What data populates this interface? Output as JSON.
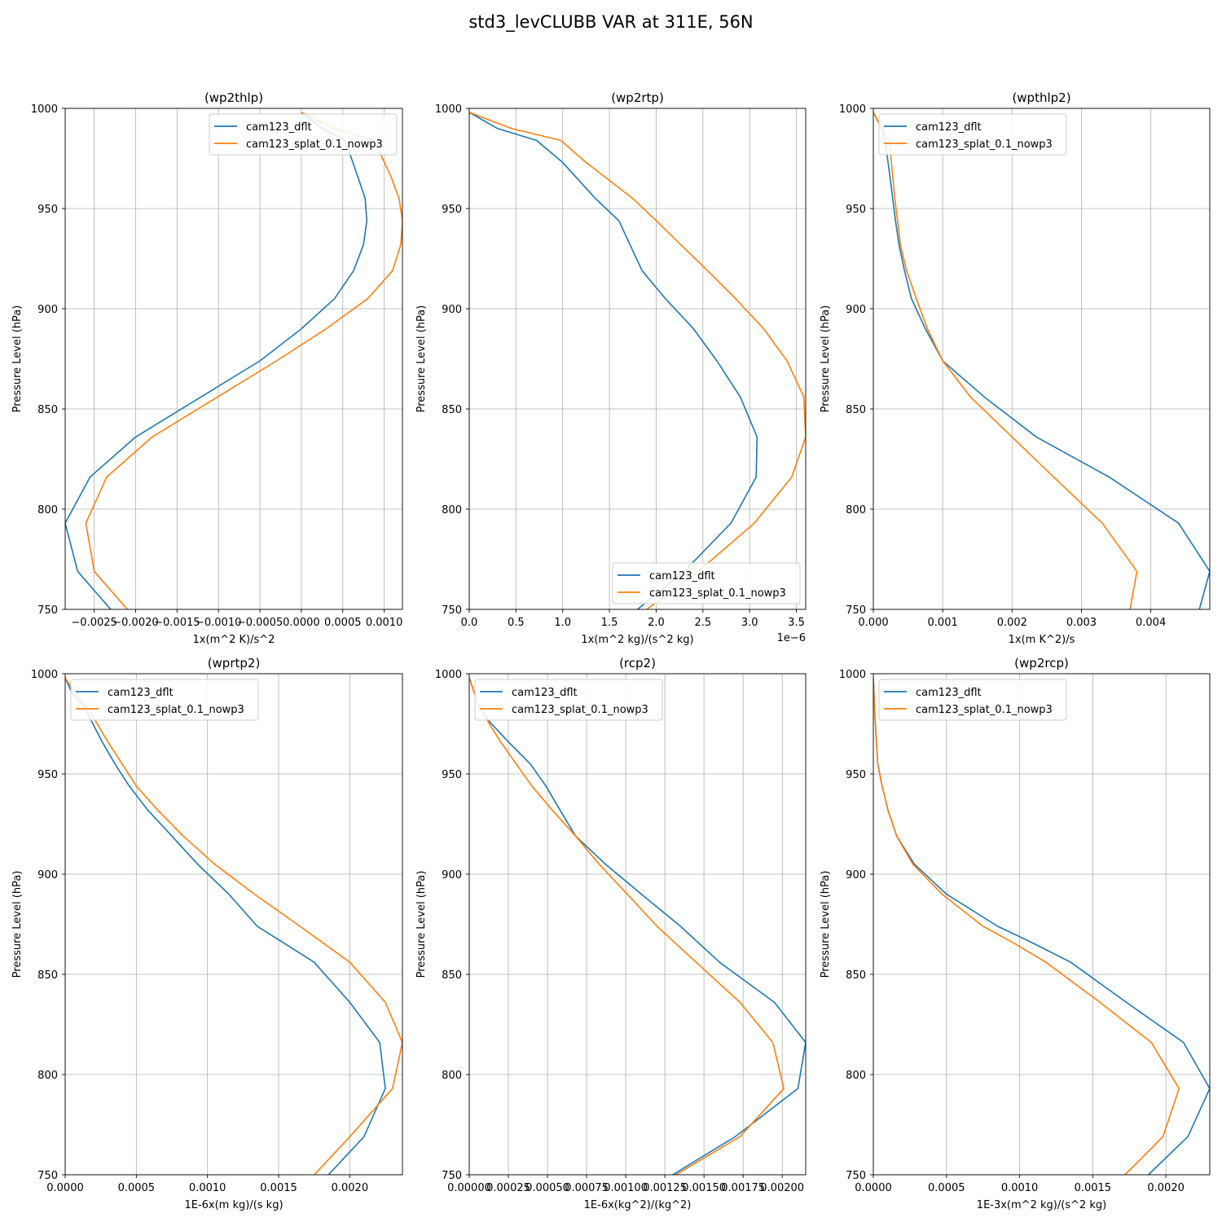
{
  "suptitle": "std3_levCLUBB VAR at 311E, 56N",
  "colors": {
    "series1": "#1f77b4",
    "series2": "#ff7f0e",
    "grid": "#b0b0b0"
  },
  "chart_data": [
    {
      "type": "line",
      "title": "(wp2thlp)",
      "xlabel": "1x(m^2 K)/s^2",
      "ylabel": "Pressure Level (hPa)",
      "xlim": [
        -0.00285,
        0.00122
      ],
      "ylim": [
        1000,
        750
      ],
      "xticks": [
        -0.0025,
        -0.002,
        -0.0015,
        -0.001,
        -0.0005,
        0.0,
        0.0005,
        0.001
      ],
      "xtick_labels": [
        "−0.0025",
        "−0.0020",
        "−0.0015",
        "−0.0010",
        "−0.0005",
        "0.0000",
        "0.0005",
        "0.0010"
      ],
      "yticks": [
        750,
        800,
        850,
        900,
        950,
        1000
      ],
      "ytick_labels": [
        "750",
        "800",
        "850",
        "900",
        "950",
        "1000"
      ],
      "x_offset_label": "",
      "grid": true,
      "legend_position": "upper right",
      "series": [
        {
          "name": "cam123_dflt",
          "color": "#1f77b4",
          "x": [
            -0.0023,
            -0.0027,
            -0.00285,
            -0.00255,
            -0.002,
            -0.0005,
            0.0,
            0.0004,
            0.00063,
            0.00075,
            0.00079,
            0.00077,
            0.00068,
            0.00053,
            0.00025,
            0.0
          ],
          "y": [
            750,
            769,
            793,
            816,
            836,
            874,
            890,
            905,
            919,
            932,
            944,
            955,
            966,
            984,
            990,
            998
          ]
        },
        {
          "name": "cam123_splat_0.1_nowp3",
          "color": "#ff7f0e",
          "x": [
            -0.0021,
            -0.0025,
            -0.0026,
            -0.00235,
            -0.0018,
            -0.0003,
            0.0003,
            0.0008,
            0.0011,
            0.0012,
            0.00122,
            0.00118,
            0.00108,
            0.00088,
            0.0004,
            0.0
          ],
          "y": [
            750,
            769,
            793,
            816,
            836,
            874,
            890,
            905,
            919,
            932,
            944,
            955,
            966,
            984,
            990,
            998
          ]
        }
      ]
    },
    {
      "type": "line",
      "title": "(wp2rtp)",
      "xlabel": "1x(m^2 kg)/(s^2 kg)",
      "ylabel": "Pressure Level (hPa)",
      "xlim": [
        0.0,
        3.6
      ],
      "ylim": [
        1000,
        750
      ],
      "xticks": [
        0.0,
        0.5,
        1.0,
        1.5,
        2.0,
        2.5,
        3.0,
        3.5
      ],
      "xtick_labels": [
        "0.0",
        "0.5",
        "1.0",
        "1.5",
        "2.0",
        "2.5",
        "3.0",
        "3.5"
      ],
      "yticks": [
        750,
        800,
        850,
        900,
        950,
        1000
      ],
      "ytick_labels": [
        "750",
        "800",
        "850",
        "900",
        "950",
        "1000"
      ],
      "x_offset_label": "1e−6",
      "grid": true,
      "legend_position": "lower right",
      "series": [
        {
          "name": "cam123_dflt",
          "color": "#1f77b4",
          "x": [
            1.8,
            2.3,
            2.8,
            3.07,
            3.08,
            2.9,
            2.65,
            2.4,
            2.1,
            1.85,
            1.6,
            1.35,
            1.0,
            0.72,
            0.3,
            0.0
          ],
          "y": [
            750,
            769,
            793,
            816,
            836,
            856,
            874,
            890,
            905,
            919,
            944,
            955,
            973,
            984,
            990,
            998
          ]
        },
        {
          "name": "cam123_splat_0.1_nowp3",
          "color": "#ff7f0e",
          "x": [
            1.9,
            2.45,
            3.05,
            3.45,
            3.6,
            3.58,
            3.4,
            3.15,
            2.85,
            2.55,
            2.0,
            1.75,
            1.25,
            0.98,
            0.45,
            0.0
          ],
          "y": [
            750,
            769,
            793,
            816,
            836,
            856,
            874,
            890,
            905,
            919,
            944,
            955,
            973,
            984,
            990,
            998
          ]
        }
      ]
    },
    {
      "type": "line",
      "title": "(wpthlp2)",
      "xlabel": "1x(m K^2)/s",
      "ylabel": "Pressure Level (hPa)",
      "xlim": [
        0.0,
        0.00485
      ],
      "ylim": [
        1000,
        750
      ],
      "xticks": [
        0.0,
        0.001,
        0.002,
        0.003,
        0.004
      ],
      "xtick_labels": [
        "0.000",
        "0.001",
        "0.002",
        "0.003",
        "0.004"
      ],
      "yticks": [
        750,
        800,
        850,
        900,
        950,
        1000
      ],
      "ytick_labels": [
        "750",
        "800",
        "850",
        "900",
        "950",
        "1000"
      ],
      "x_offset_label": "",
      "grid": true,
      "legend_position": "upper left",
      "series": [
        {
          "name": "cam123_dflt",
          "color": "#1f77b4",
          "x": [
            0.0047,
            0.00485,
            0.0044,
            0.0034,
            0.00235,
            0.0016,
            0.001,
            0.00075,
            0.00055,
            0.00045,
            0.00037,
            0.00032,
            0.00028,
            0.00024,
            0.00017,
            0.00012,
            0.0
          ],
          "y": [
            750,
            769,
            793,
            816,
            836,
            856,
            874,
            890,
            905,
            919,
            932,
            944,
            955,
            966,
            984,
            990,
            998
          ]
        },
        {
          "name": "cam123_splat_0.1_nowp3",
          "color": "#ff7f0e",
          "x": [
            0.0037,
            0.0038,
            0.0033,
            0.0026,
            0.002,
            0.0014,
            0.001,
            0.00078,
            0.00062,
            0.00048,
            0.00039,
            0.00035,
            0.00031,
            0.00028,
            0.00023,
            0.00012,
            0.0
          ],
          "y": [
            750,
            769,
            793,
            816,
            836,
            856,
            874,
            890,
            905,
            919,
            932,
            944,
            955,
            966,
            984,
            990,
            998
          ]
        }
      ]
    },
    {
      "type": "line",
      "title": "(wprtp2)",
      "xlabel": "1E-6x(m kg)/(s kg)",
      "ylabel": "Pressure Level (hPa)",
      "xlim": [
        0.0,
        0.00237
      ],
      "ylim": [
        1000,
        750
      ],
      "xticks": [
        0.0,
        0.0005,
        0.001,
        0.0015,
        0.002
      ],
      "xtick_labels": [
        "0.0000",
        "0.0005",
        "0.0010",
        "0.0015",
        "0.0020"
      ],
      "yticks": [
        750,
        800,
        850,
        900,
        950,
        1000
      ],
      "ytick_labels": [
        "750",
        "800",
        "850",
        "900",
        "950",
        "1000"
      ],
      "x_offset_label": "",
      "grid": true,
      "legend_position": "upper left",
      "series": [
        {
          "name": "cam123_dflt",
          "color": "#1f77b4",
          "x": [
            0.00185,
            0.0021,
            0.00225,
            0.00221,
            0.002,
            0.00175,
            0.00135,
            0.00115,
            0.00093,
            0.00075,
            0.00058,
            0.00045,
            0.00035,
            0.00026,
            0.00013,
            5e-05,
            0.0
          ],
          "y": [
            750,
            769,
            793,
            816,
            836,
            856,
            874,
            890,
            905,
            919,
            932,
            944,
            955,
            966,
            984,
            990,
            998
          ]
        },
        {
          "name": "cam123_splat_0.1_nowp3",
          "color": "#ff7f0e",
          "x": [
            0.00175,
            0.002,
            0.0023,
            0.00237,
            0.00225,
            0.002,
            0.00165,
            0.00133,
            0.00105,
            0.00083,
            0.00065,
            0.0005,
            0.0004,
            0.0003,
            0.00015,
            7e-05,
            0.0
          ],
          "y": [
            750,
            769,
            793,
            816,
            836,
            856,
            874,
            890,
            905,
            919,
            932,
            944,
            955,
            966,
            984,
            990,
            998
          ]
        }
      ]
    },
    {
      "type": "line",
      "title": "(rcp2)",
      "xlabel": "1E-6x(kg^2)/(kg^2)",
      "ylabel": "Pressure Level (hPa)",
      "xlim": [
        0.0,
        0.00215
      ],
      "ylim": [
        1000,
        750
      ],
      "xticks": [
        0.0,
        0.00025,
        0.0005,
        0.00075,
        0.001,
        0.00125,
        0.0015,
        0.00175,
        0.002
      ],
      "xtick_labels": [
        "0.00000",
        "0.00025",
        "0.00050",
        "0.00075",
        "0.00100",
        "0.00125",
        "0.00150",
        "0.00175",
        "0.00200"
      ],
      "yticks": [
        750,
        800,
        850,
        900,
        950,
        1000
      ],
      "ytick_labels": [
        "750",
        "800",
        "850",
        "900",
        "950",
        "1000"
      ],
      "x_offset_label": "",
      "grid": true,
      "legend_position": "upper left",
      "series": [
        {
          "name": "cam123_dflt",
          "color": "#1f77b4",
          "x": [
            0.0013,
            0.0017,
            0.0021,
            0.00215,
            0.00195,
            0.0016,
            0.00135,
            0.0011,
            0.00087,
            0.00068,
            0.00058,
            0.00049,
            0.00039,
            0.00025,
            0.00013,
            6e-05,
            0.0
          ],
          "y": [
            750,
            769,
            793,
            816,
            836,
            856,
            874,
            890,
            905,
            919,
            932,
            944,
            955,
            966,
            976,
            984,
            998
          ]
        },
        {
          "name": "cam123_splat_0.1_nowp3",
          "color": "#ff7f0e",
          "x": [
            0.00132,
            0.00173,
            0.00201,
            0.00194,
            0.00173,
            0.00145,
            0.0012,
            0.00101,
            0.00083,
            0.00068,
            0.00053,
            0.0004,
            0.0003,
            0.0002,
            0.00012,
            6e-05,
            0.0
          ],
          "y": [
            750,
            769,
            793,
            816,
            836,
            856,
            874,
            890,
            905,
            919,
            932,
            944,
            955,
            966,
            976,
            984,
            998
          ]
        }
      ]
    },
    {
      "type": "line",
      "title": "(wp2rcp)",
      "xlabel": "1E-3x(m^2 kg)/(s^2 kg)",
      "ylabel": "Pressure Level (hPa)",
      "xlim": [
        0.0,
        0.0023
      ],
      "ylim": [
        1000,
        750
      ],
      "xticks": [
        0.0,
        0.0005,
        0.001,
        0.0015,
        0.002
      ],
      "xtick_labels": [
        "0.0000",
        "0.0005",
        "0.0010",
        "0.0015",
        "0.0020"
      ],
      "yticks": [
        750,
        800,
        850,
        900,
        950,
        1000
      ],
      "ytick_labels": [
        "750",
        "800",
        "850",
        "900",
        "950",
        "1000"
      ],
      "x_offset_label": "",
      "grid": true,
      "legend_position": "upper left",
      "series": [
        {
          "name": "cam123_dflt",
          "color": "#1f77b4",
          "x": [
            0.00188,
            0.00215,
            0.0023,
            0.00212,
            0.00173,
            0.00135,
            0.00108,
            0.00085,
            0.0005,
            0.00028,
            0.00016,
            0.0001,
            6e-05,
            3e-05,
            1e-05,
            0.0
          ],
          "y": [
            750,
            769,
            793,
            816,
            836,
            856,
            866,
            874,
            890,
            905,
            919,
            932,
            944,
            955,
            980,
            998
          ]
        },
        {
          "name": "cam123_splat_0.1_nowp3",
          "color": "#ff7f0e",
          "x": [
            0.00172,
            0.00198,
            0.00209,
            0.0019,
            0.00155,
            0.00118,
            0.00095,
            0.00075,
            0.00047,
            0.00027,
            0.00016,
            0.0001,
            6e-05,
            3e-05,
            1e-05,
            0.0
          ],
          "y": [
            750,
            769,
            793,
            816,
            836,
            856,
            866,
            874,
            890,
            905,
            919,
            932,
            944,
            955,
            980,
            998
          ]
        }
      ]
    }
  ]
}
